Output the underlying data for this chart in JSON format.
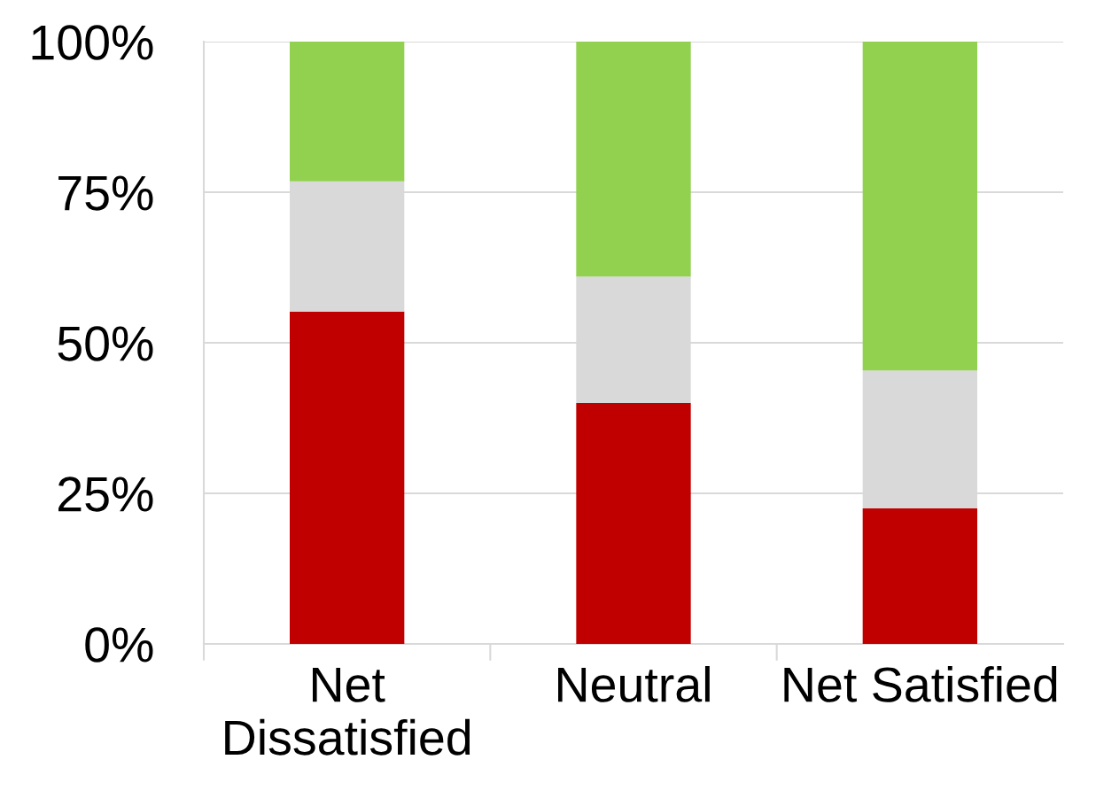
{
  "chart_data": {
    "type": "bar",
    "stacked": true,
    "categories": [
      "Net\nDissatisfied",
      "Neutral",
      "Net Satisfied"
    ],
    "series": [
      {
        "color": "#c00000",
        "values": [
          55.2,
          40.0,
          22.5
        ]
      },
      {
        "color": "#d9d9d9",
        "values": [
          21.6,
          21.0,
          22.9
        ]
      },
      {
        "color": "#92d050",
        "values": [
          23.2,
          39.0,
          54.6
        ]
      }
    ],
    "ylim": [
      0,
      100
    ],
    "yticks": [
      {
        "value": 0,
        "label": "0%"
      },
      {
        "value": 25,
        "label": "25%"
      },
      {
        "value": 50,
        "label": "50%"
      },
      {
        "value": 75,
        "label": "75%"
      },
      {
        "value": 100,
        "label": "100%"
      }
    ],
    "grid": "y",
    "legend": false
  }
}
